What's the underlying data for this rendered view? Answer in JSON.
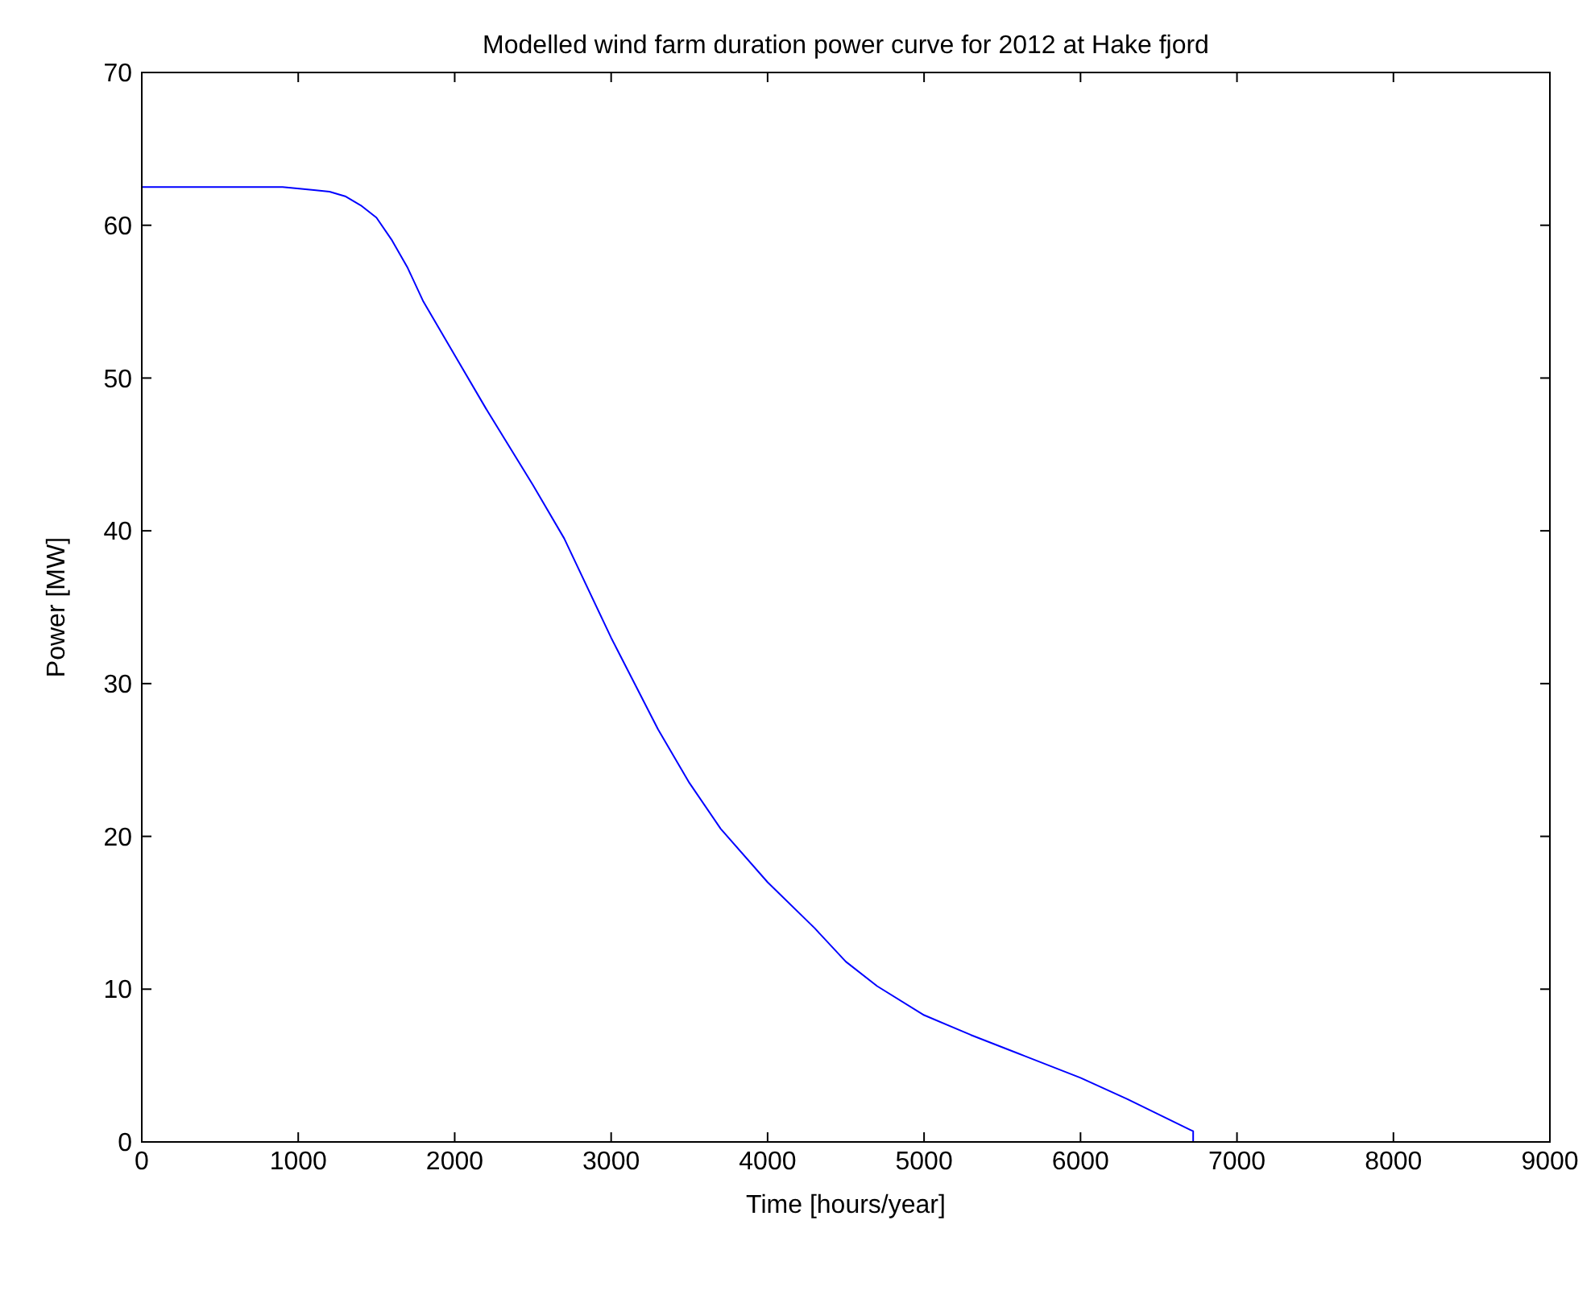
{
  "chart_data": {
    "type": "line",
    "title": "Modelled wind farm duration power curve for 2012 at Hake fjord",
    "xlabel": "Time [hours/year]",
    "ylabel": "Power [MW]",
    "series": [
      {
        "color": "#0000ff",
        "x": [
          0,
          500,
          900,
          1100,
          1200,
          1300,
          1400,
          1500,
          1600,
          1700,
          1800,
          2000,
          2200,
          2500,
          2700,
          3000,
          3300,
          3500,
          3700,
          4000,
          4300,
          4500,
          4700,
          5000,
          5300,
          5600,
          6000,
          6300,
          6700,
          6720,
          6720
        ],
        "values": [
          62.5,
          62.5,
          62.5,
          62.3,
          62.2,
          61.9,
          61.3,
          60.5,
          59,
          57.2,
          55,
          51.5,
          48,
          43,
          39.5,
          33,
          27,
          23.5,
          20.5,
          17,
          14,
          11.8,
          10.2,
          8.3,
          7,
          5.8,
          4.2,
          2.8,
          0.8,
          0.7,
          0
        ]
      }
    ],
    "xlim": [
      0,
      9000
    ],
    "xticks": [
      0,
      1000,
      2000,
      3000,
      4000,
      5000,
      6000,
      7000,
      8000,
      9000
    ],
    "ylim": [
      0,
      70
    ],
    "yticks": [
      0,
      10,
      20,
      30,
      40,
      50,
      60,
      70
    ],
    "grid": false,
    "marker": "none",
    "line_style": "solid"
  }
}
